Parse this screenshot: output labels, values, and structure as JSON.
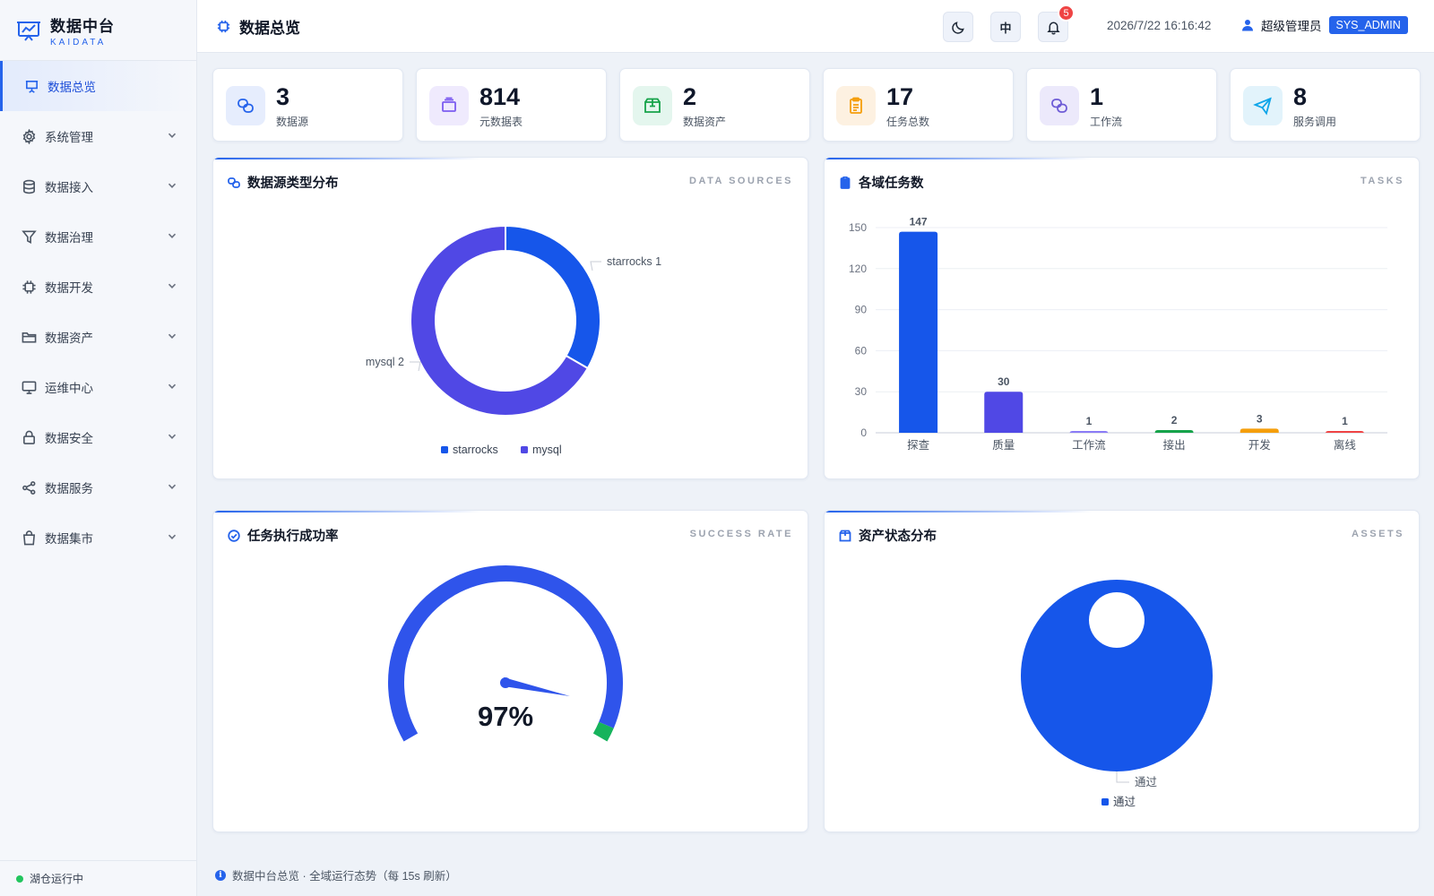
{
  "app": {
    "title": "数据中台",
    "subtitle": "KAIDATA"
  },
  "sidebar": {
    "items": [
      {
        "label": "数据总览",
        "icon": "presentation-icon",
        "active": true
      },
      {
        "label": "系统管理",
        "icon": "gear-icon"
      },
      {
        "label": "数据接入",
        "icon": "database-icon"
      },
      {
        "label": "数据治理",
        "icon": "filter-icon"
      },
      {
        "label": "数据开发",
        "icon": "chip-icon"
      },
      {
        "label": "数据资产",
        "icon": "folder-icon"
      },
      {
        "label": "运维中心",
        "icon": "monitor-icon"
      },
      {
        "label": "数据安全",
        "icon": "lock-icon"
      },
      {
        "label": "数据服务",
        "icon": "share-icon"
      },
      {
        "label": "数据集市",
        "icon": "bag-icon"
      }
    ],
    "status": "湖仓运行中"
  },
  "header": {
    "title": "数据总览",
    "lang_label": "中",
    "notification_count": "5",
    "datetime": "2026/7/22 16:16:42",
    "user": "超级管理员",
    "role": "SYS_ADMIN"
  },
  "stats": [
    {
      "value": "3",
      "label": "数据源",
      "icon": "link-icon",
      "bg": "#e6edfd",
      "color": "#2563eb"
    },
    {
      "value": "814",
      "label": "元数据表",
      "icon": "layers-icon",
      "bg": "#efeafd",
      "color": "#7c5cf0"
    },
    {
      "value": "2",
      "label": "数据资产",
      "icon": "box-icon",
      "bg": "#e4f6ee",
      "color": "#16a34a"
    },
    {
      "value": "17",
      "label": "任务总数",
      "icon": "clipboard-icon",
      "bg": "#fdf1e1",
      "color": "#f59e0b"
    },
    {
      "value": "1",
      "label": "工作流",
      "icon": "link-icon",
      "bg": "#ece9fb",
      "color": "#6d5bd6"
    },
    {
      "value": "8",
      "label": "服务调用",
      "icon": "send-icon",
      "bg": "#e2f3fb",
      "color": "#0ea5e9"
    }
  ],
  "cards": {
    "sources": {
      "title": "数据源类型分布",
      "tag": "DATA SOURCES"
    },
    "tasks": {
      "title": "各域任务数",
      "tag": "TASKS"
    },
    "success": {
      "title": "任务执行成功率",
      "tag": "SUCCESS RATE"
    },
    "assets": {
      "title": "资产状态分布",
      "tag": "ASSETS"
    }
  },
  "footer": "数据中台总览 · 全域运行态势（每 15s 刷新）",
  "chart_data": [
    {
      "type": "pie",
      "labels": [
        "starrocks",
        "mysql"
      ],
      "values": [
        1,
        2
      ],
      "colors": [
        "#1656ea",
        "#5048e5"
      ],
      "slice_labels": [
        "starrocks 1",
        "mysql 2"
      ],
      "legend": "bottom-center",
      "donut": true
    },
    {
      "type": "bar",
      "categories": [
        "探查",
        "质量",
        "工作流",
        "接出",
        "开发",
        "离线"
      ],
      "values": [
        147,
        30,
        1,
        2,
        3,
        1
      ],
      "colors": [
        "#1656ea",
        "#5048e5",
        "#8b7cf6",
        "#16a34a",
        "#f59e0b",
        "#ef4444"
      ],
      "yticks": [
        0,
        30,
        60,
        90,
        120,
        150
      ],
      "ylim": [
        0,
        150
      ],
      "grid": true
    },
    {
      "type": "gauge",
      "value": 97,
      "display": "97%",
      "max": 100,
      "colors": [
        "#2f54eb",
        "#16b35c"
      ]
    },
    {
      "type": "pie",
      "labels": [
        "通过"
      ],
      "values": [
        1
      ],
      "colors": [
        "#1656ea"
      ],
      "slice_labels": [
        "通过"
      ],
      "legend": "bottom-center",
      "donut": true
    }
  ]
}
